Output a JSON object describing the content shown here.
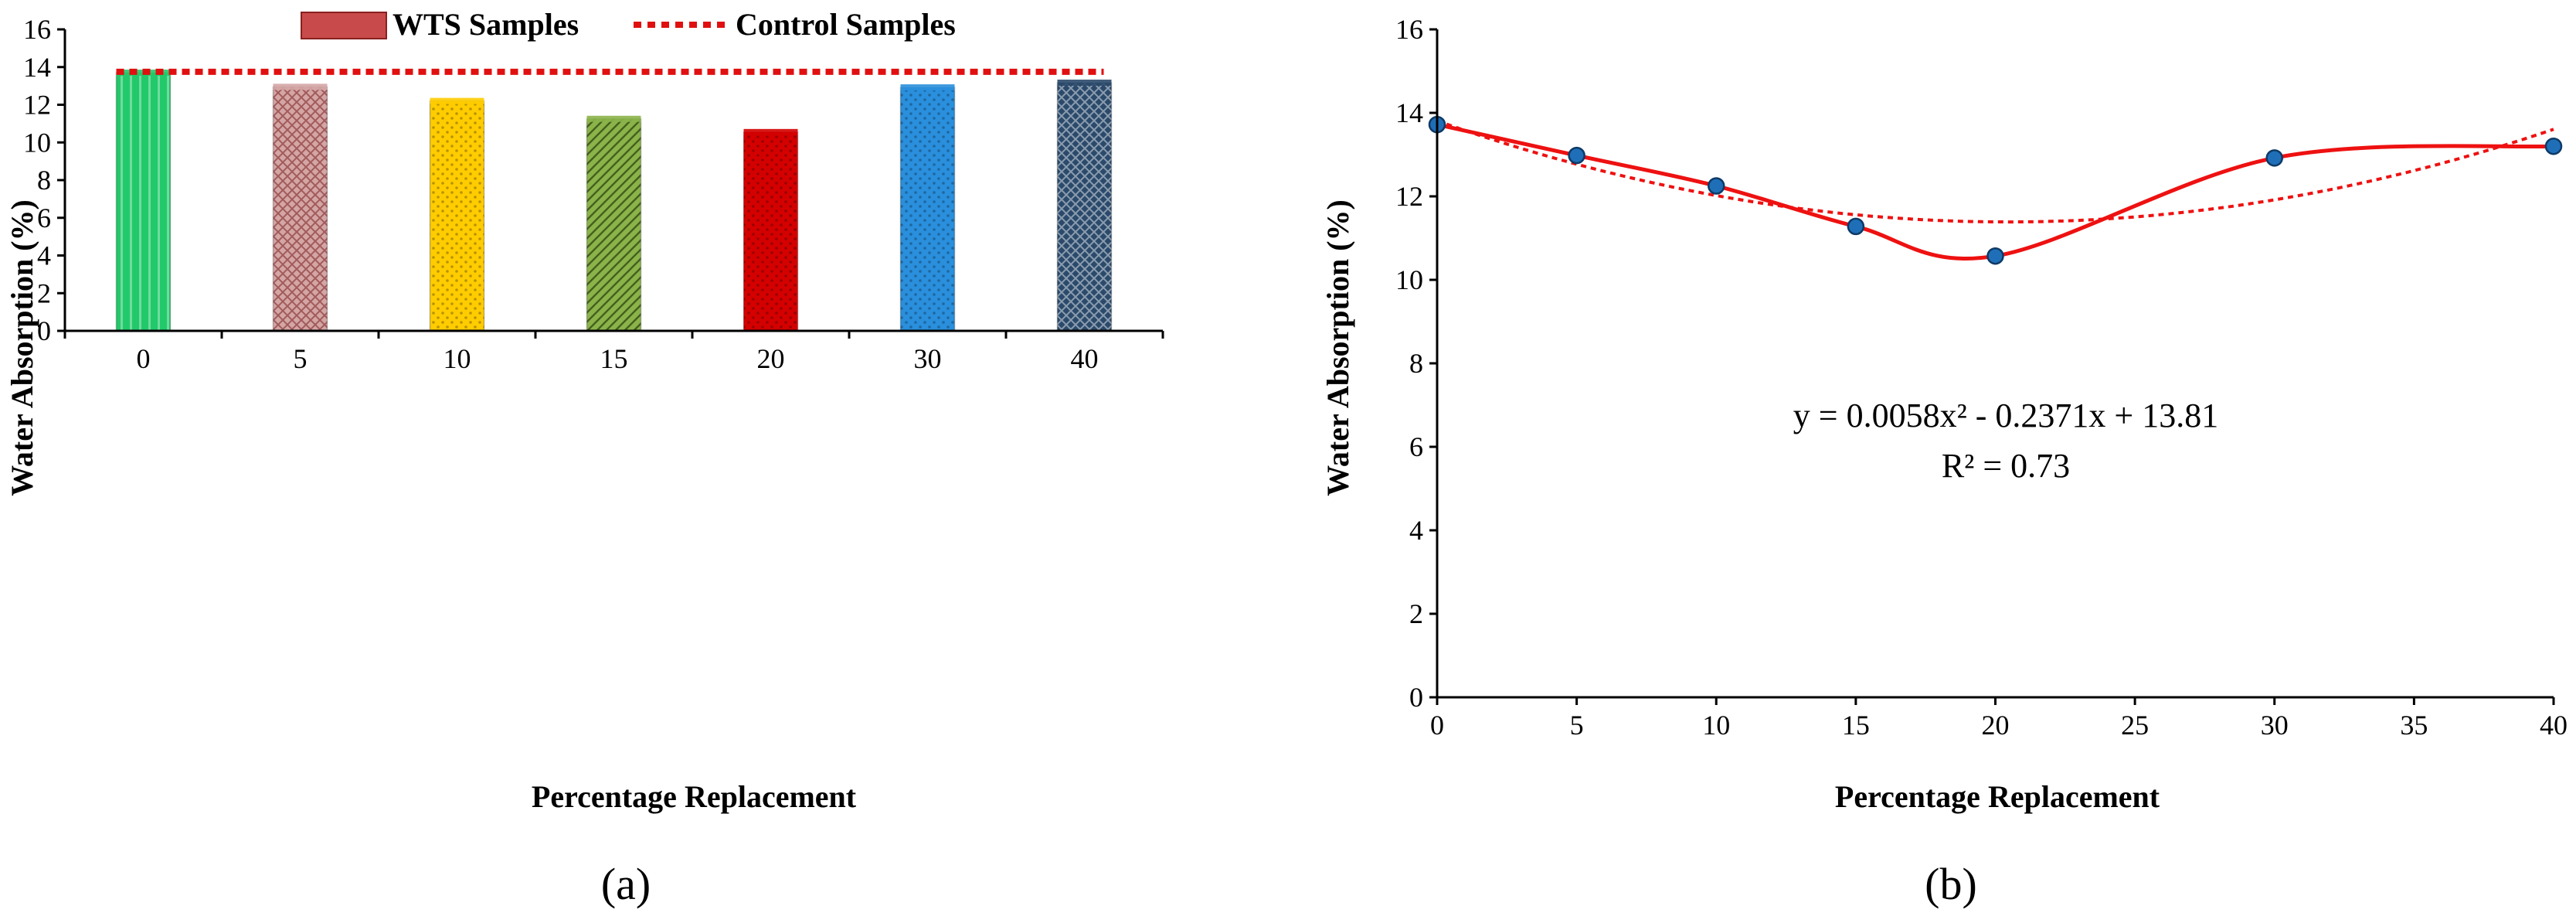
{
  "colors": {
    "control_line": "#e01010",
    "fit_curve": "#ee1111",
    "marker_fill": "#1f6fb8",
    "marker_stroke": "#0d3a66",
    "axis": "#000000"
  },
  "chart_data": [
    {
      "type": "bar",
      "panel_label": "(a)",
      "title": "",
      "xlabel": "Percentage Replacement",
      "ylabel": "Water Absorption (%)",
      "ylim": [
        0,
        16
      ],
      "yticks": [
        "0",
        "2",
        "4",
        "6",
        "8",
        "10",
        "12",
        "14",
        "16"
      ],
      "categories": [
        "0",
        "5",
        "10",
        "15",
        "20",
        "30",
        "40"
      ],
      "values": [
        13.7,
        12.95,
        12.2,
        11.25,
        10.55,
        12.92,
        13.17
      ],
      "bar_colors": [
        "#22c96a",
        "#d4a5a5",
        "#ffcc00",
        "#8ab44a",
        "#d40000",
        "#2a8fdc",
        "#2b4a6b"
      ],
      "bar_patterns": [
        "stripe-v",
        "check",
        "dots",
        "diag",
        "dots",
        "dots",
        "cross"
      ],
      "control_value": 13.75,
      "legend": {
        "position": "top",
        "entries": [
          {
            "label": "WTS Samples",
            "kind": "bar"
          },
          {
            "label": "Control Samples",
            "kind": "dotted-line"
          }
        ]
      }
    },
    {
      "type": "scatter",
      "panel_label": "(b)",
      "title": "",
      "xlabel": "Percentage Replacement",
      "ylabel": "Water Absorption (%)",
      "xlim": [
        0,
        40
      ],
      "ylim": [
        0,
        16
      ],
      "xticks": [
        "0",
        "5",
        "10",
        "15",
        "20",
        "25",
        "30",
        "35",
        "40"
      ],
      "yticks": [
        "0",
        "2",
        "4",
        "6",
        "8",
        "10",
        "12",
        "14",
        "16"
      ],
      "x": [
        0,
        5,
        10,
        15,
        20,
        30,
        40
      ],
      "y": [
        13.72,
        12.98,
        12.25,
        11.28,
        10.57,
        12.92,
        13.2
      ],
      "trendline": {
        "kind": "polynomial-2",
        "coefficients": [
          0.0058,
          -0.2371,
          13.81
        ],
        "equation": "y = 0.0058x² - 0.2371x + 13.81",
        "r_squared": "R² = 0.73"
      }
    }
  ]
}
